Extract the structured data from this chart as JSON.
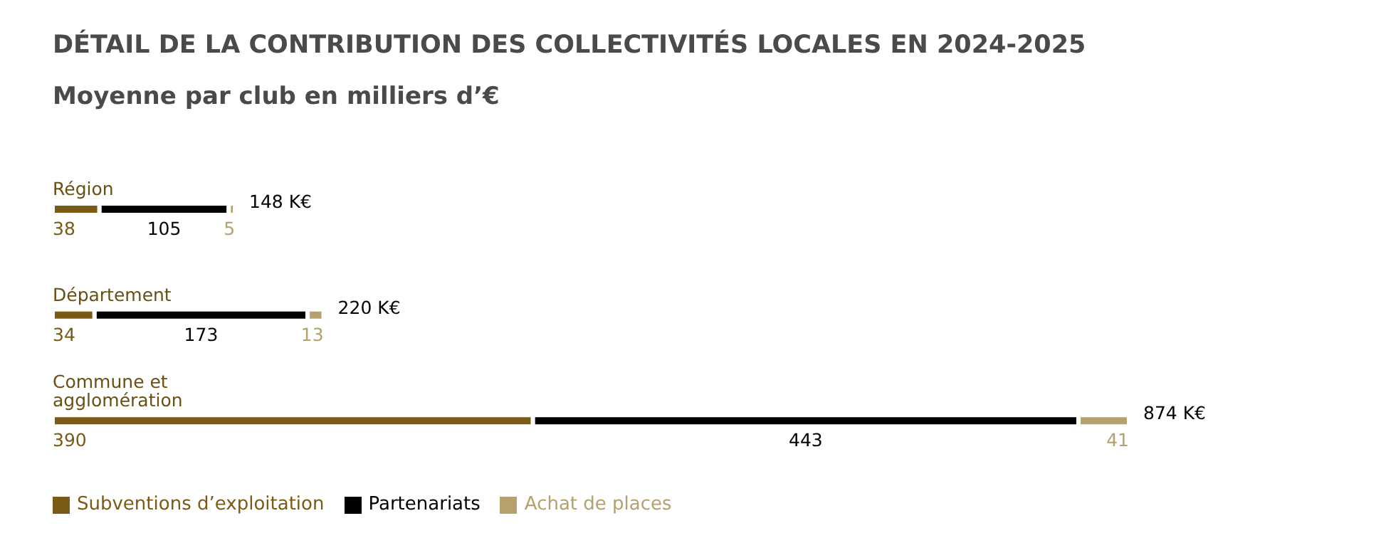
{
  "chart_data": {
    "type": "bar",
    "orientation": "horizontal",
    "stacked": true,
    "title": "DÉTAIL DE LA CONTRIBUTION DES COLLECTIVITÉS LOCALES EN 2024-2025",
    "subtitle": "Moyenne par club en milliers d’€",
    "categories": [
      "Région",
      "Département",
      "Commune et agglomération"
    ],
    "series": [
      {
        "name": "Subventions d’exploitation",
        "color": "#7a5a14",
        "values": [
          38,
          34,
          390
        ]
      },
      {
        "name": "Partenariats",
        "color": "#000000",
        "values": [
          105,
          173,
          443
        ]
      },
      {
        "name": "Achat de places",
        "color": "#b5a06e",
        "values": [
          5,
          13,
          41
        ]
      }
    ],
    "data_labels": true,
    "totals": [
      "148 K€",
      "220 K€",
      "874 K€"
    ],
    "legend": "bottom left",
    "grid": false
  }
}
